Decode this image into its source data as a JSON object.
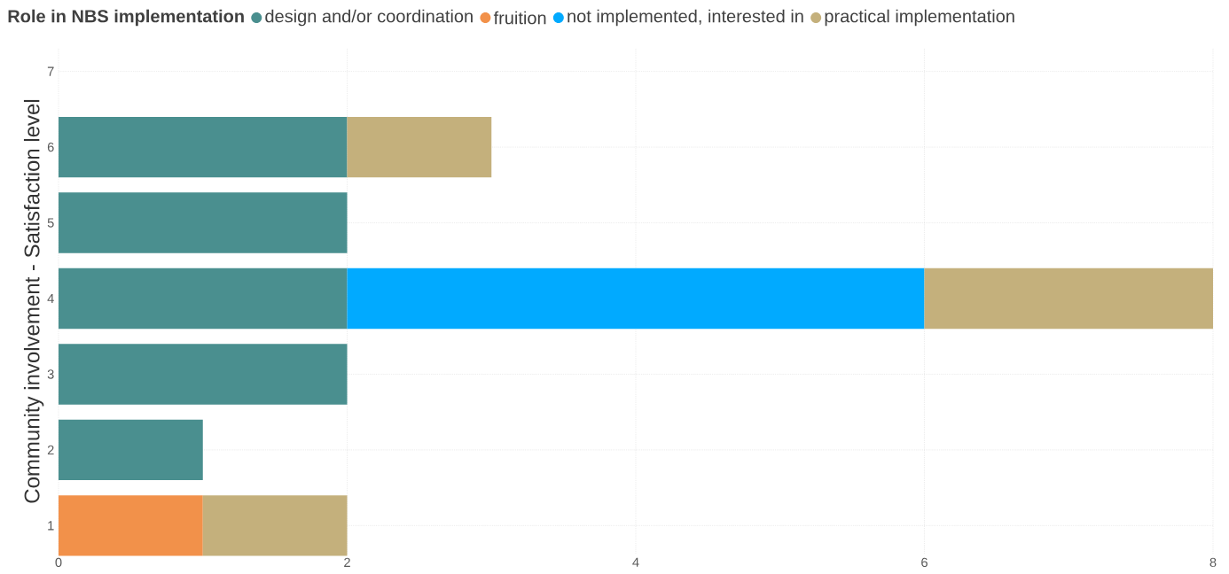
{
  "chart_data": {
    "type": "bar",
    "orientation": "horizontal",
    "stacked": true,
    "legend_title": "Role in NBS implementation",
    "ylabel": "Community involvement - Satisfaction level",
    "categories": [
      "7",
      "6",
      "5",
      "4",
      "3",
      "2",
      "1"
    ],
    "series": [
      {
        "name": "design and/or coordination",
        "color": "#4a8f8f",
        "values": [
          null,
          2,
          2,
          2,
          2,
          1,
          null
        ]
      },
      {
        "name": "fruition",
        "color": "#f2914a",
        "values": [
          null,
          null,
          null,
          null,
          null,
          null,
          1
        ]
      },
      {
        "name": "not implemented, interested in",
        "color": "#01aaff",
        "values": [
          null,
          null,
          null,
          4,
          null,
          null,
          null
        ]
      },
      {
        "name": "practical implementation",
        "color": "#c4b07c",
        "values": [
          null,
          1,
          null,
          2,
          null,
          null,
          1
        ]
      }
    ],
    "xlim": [
      0,
      8
    ],
    "xticks": [
      0,
      2,
      4,
      6,
      8
    ],
    "grid": true,
    "legend": "top"
  }
}
